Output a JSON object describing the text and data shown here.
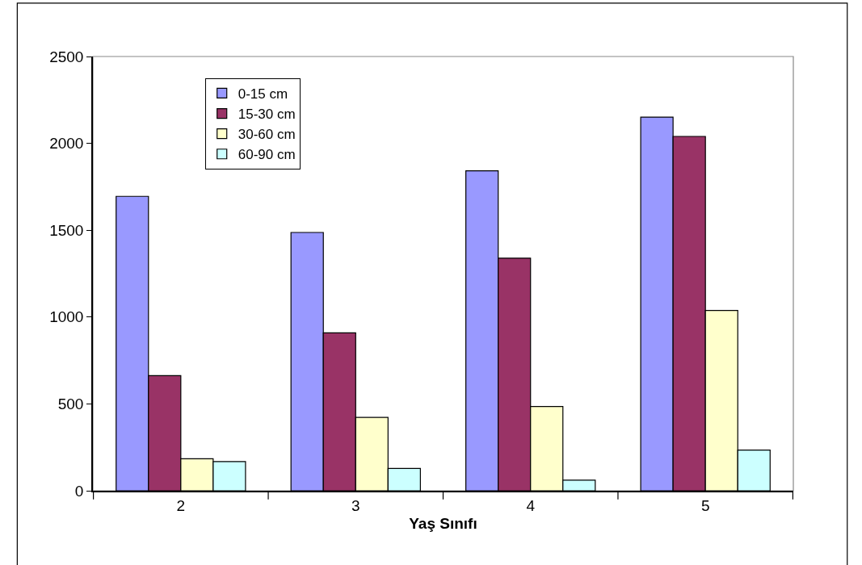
{
  "chart_data": {
    "type": "bar",
    "xlabel": "Yaş Sınıfı",
    "categories": [
      "2",
      "3",
      "4",
      "5"
    ],
    "series": [
      {
        "name": "0-15 cm",
        "color": "#9999ff",
        "values": [
          1695,
          1487,
          1842,
          2151
        ]
      },
      {
        "name": "15-30 cm",
        "color": "#993366",
        "values": [
          663,
          909,
          1339,
          2040
        ]
      },
      {
        "name": "30-60 cm",
        "color": "#ffffcc",
        "values": [
          184,
          422,
          485,
          1038
        ]
      },
      {
        "name": "60-90 cm",
        "color": "#ccffff",
        "values": [
          168,
          128,
          61,
          234
        ]
      }
    ],
    "ylim": [
      0,
      2500
    ],
    "yticks": [
      0,
      500,
      1000,
      1500,
      2000,
      2500
    ],
    "grid": false,
    "legend": "top left"
  }
}
